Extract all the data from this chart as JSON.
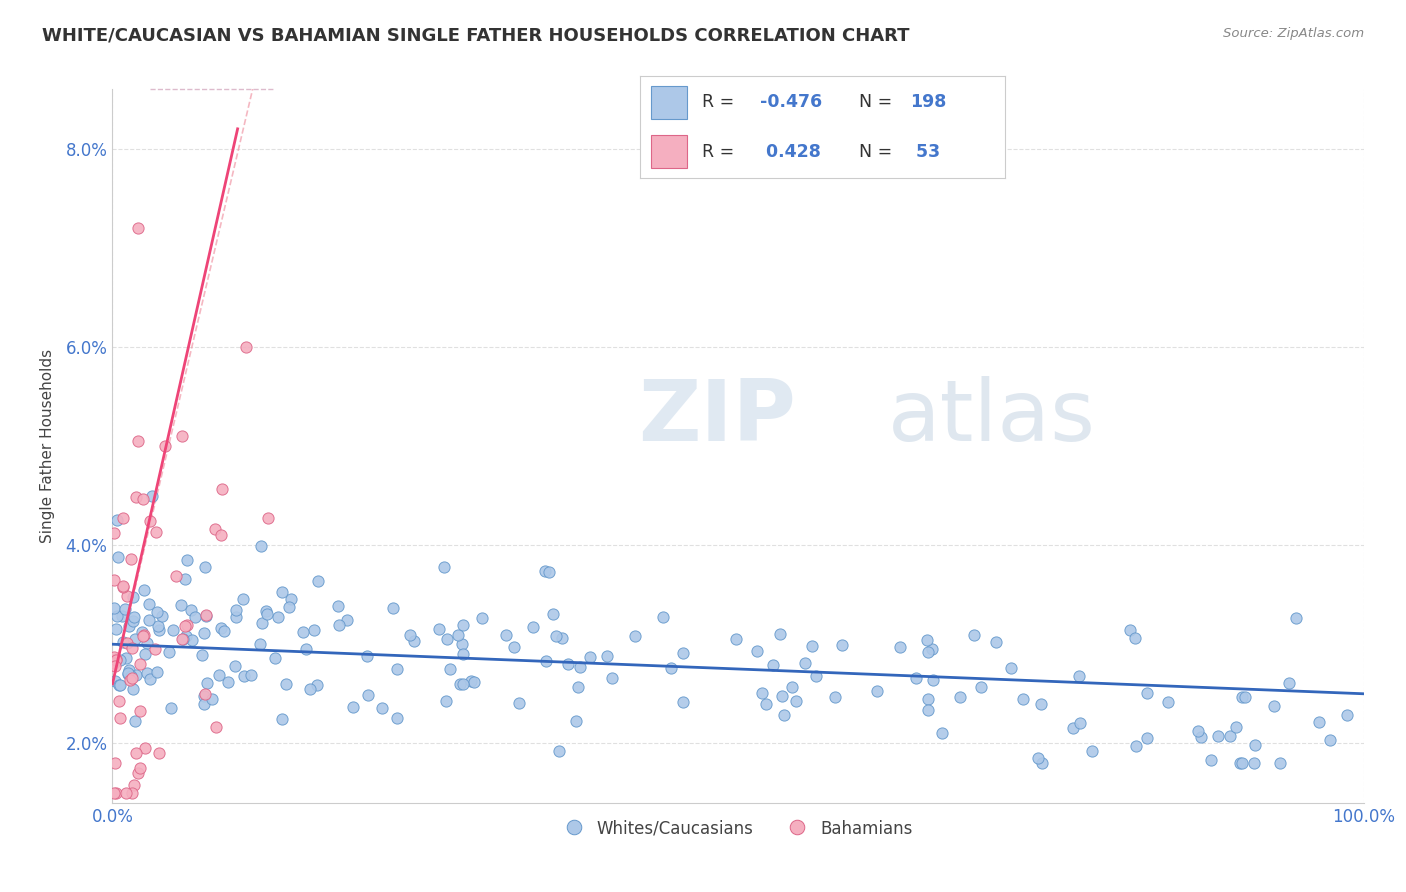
{
  "title": "WHITE/CAUCASIAN VS BAHAMIAN SINGLE FATHER HOUSEHOLDS CORRELATION CHART",
  "source": "Source: ZipAtlas.com",
  "ylabel": "Single Father Households",
  "xmin": 0.0,
  "xmax": 100.0,
  "ymin": 0.014,
  "ymax": 0.086,
  "yticks": [
    0.02,
    0.04,
    0.06,
    0.08
  ],
  "ytick_labels": [
    "2.0%",
    "4.0%",
    "6.0%",
    "8.0%"
  ],
  "xtick_labels": [
    "0.0%",
    "100.0%"
  ],
  "series1_color": "#adc8e8",
  "series1_edge": "#6699cc",
  "series1_line": "#3366bb",
  "series2_color": "#f5afc0",
  "series2_edge": "#dd6688",
  "series2_line": "#ee4477",
  "R1": -0.476,
  "N1": 198,
  "R2": 0.428,
  "N2": 53,
  "legend_label1": "Whites/Caucasians",
  "legend_label2": "Bahamians",
  "watermark": "ZIPatlas",
  "background_color": "#ffffff",
  "grid_color": "#cccccc",
  "title_color": "#333333",
  "tick_color": "#4477cc",
  "seed": 42
}
